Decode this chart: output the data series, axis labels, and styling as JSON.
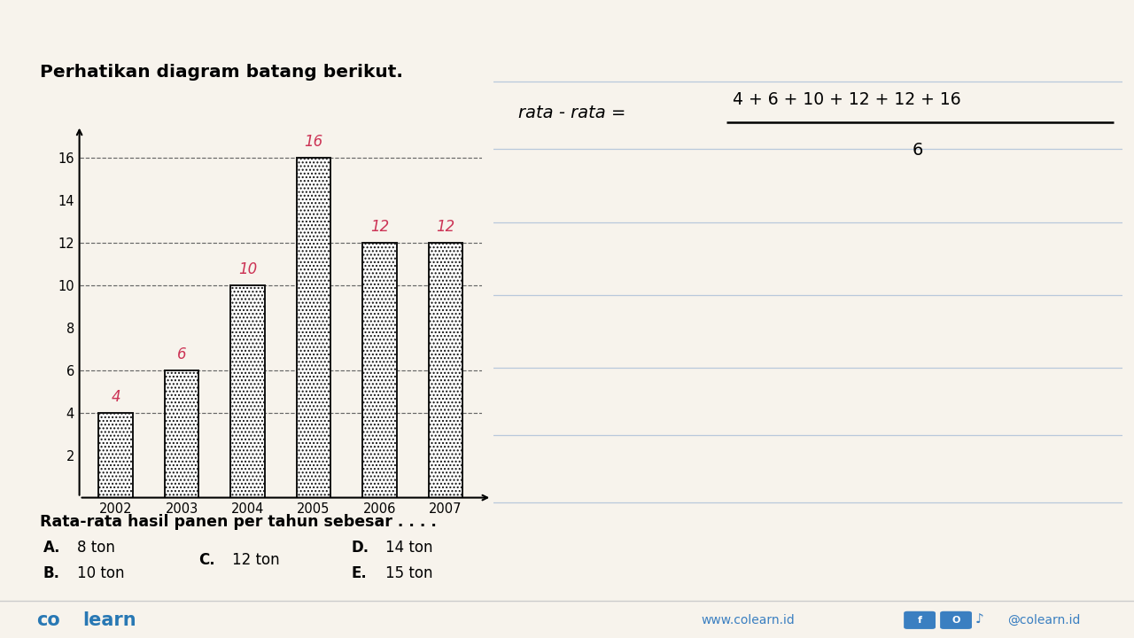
{
  "title": "Perhatikan diagram batang berikut.",
  "years": [
    "2002",
    "2003",
    "2004",
    "2005",
    "2006",
    "2007"
  ],
  "values": [
    4,
    6,
    10,
    16,
    12,
    12
  ],
  "bar_values_labels": [
    "4",
    "6",
    "10",
    "16",
    "12",
    "12"
  ],
  "yticks": [
    2,
    4,
    6,
    8,
    10,
    12,
    14,
    16
  ],
  "ylim": [
    0,
    18.0
  ],
  "dashed_lines": [
    4,
    6,
    10,
    12,
    16
  ],
  "question_text": "Rata-rata hasil panen per tahun sebesar . . . .",
  "options": [
    [
      "A.",
      "8 ton"
    ],
    [
      "B.",
      "10 ton"
    ],
    [
      "C.",
      "12 ton"
    ],
    [
      "D.",
      "14 ton"
    ],
    [
      "E.",
      "15 ton"
    ]
  ],
  "formula_left": "rata - rata = ",
  "formula_numerator": "4 + 6 + 10 + 12 + 12 + 16",
  "formula_denominator": "6",
  "bg_color": "#f7f3ec",
  "right_bg": "#ffffff",
  "bar_fill": "#ffffff",
  "bar_hatch": "....",
  "bar_edgecolor": "#111111",
  "dashed_color": "#666666",
  "brand_color": "#2878b4",
  "website_text": "www.colearn.id",
  "social_color": "#3a7fc1",
  "value_label_color": "#cc3355",
  "line_color": "#b8c8dc",
  "footer_line_color": "#cccccc"
}
